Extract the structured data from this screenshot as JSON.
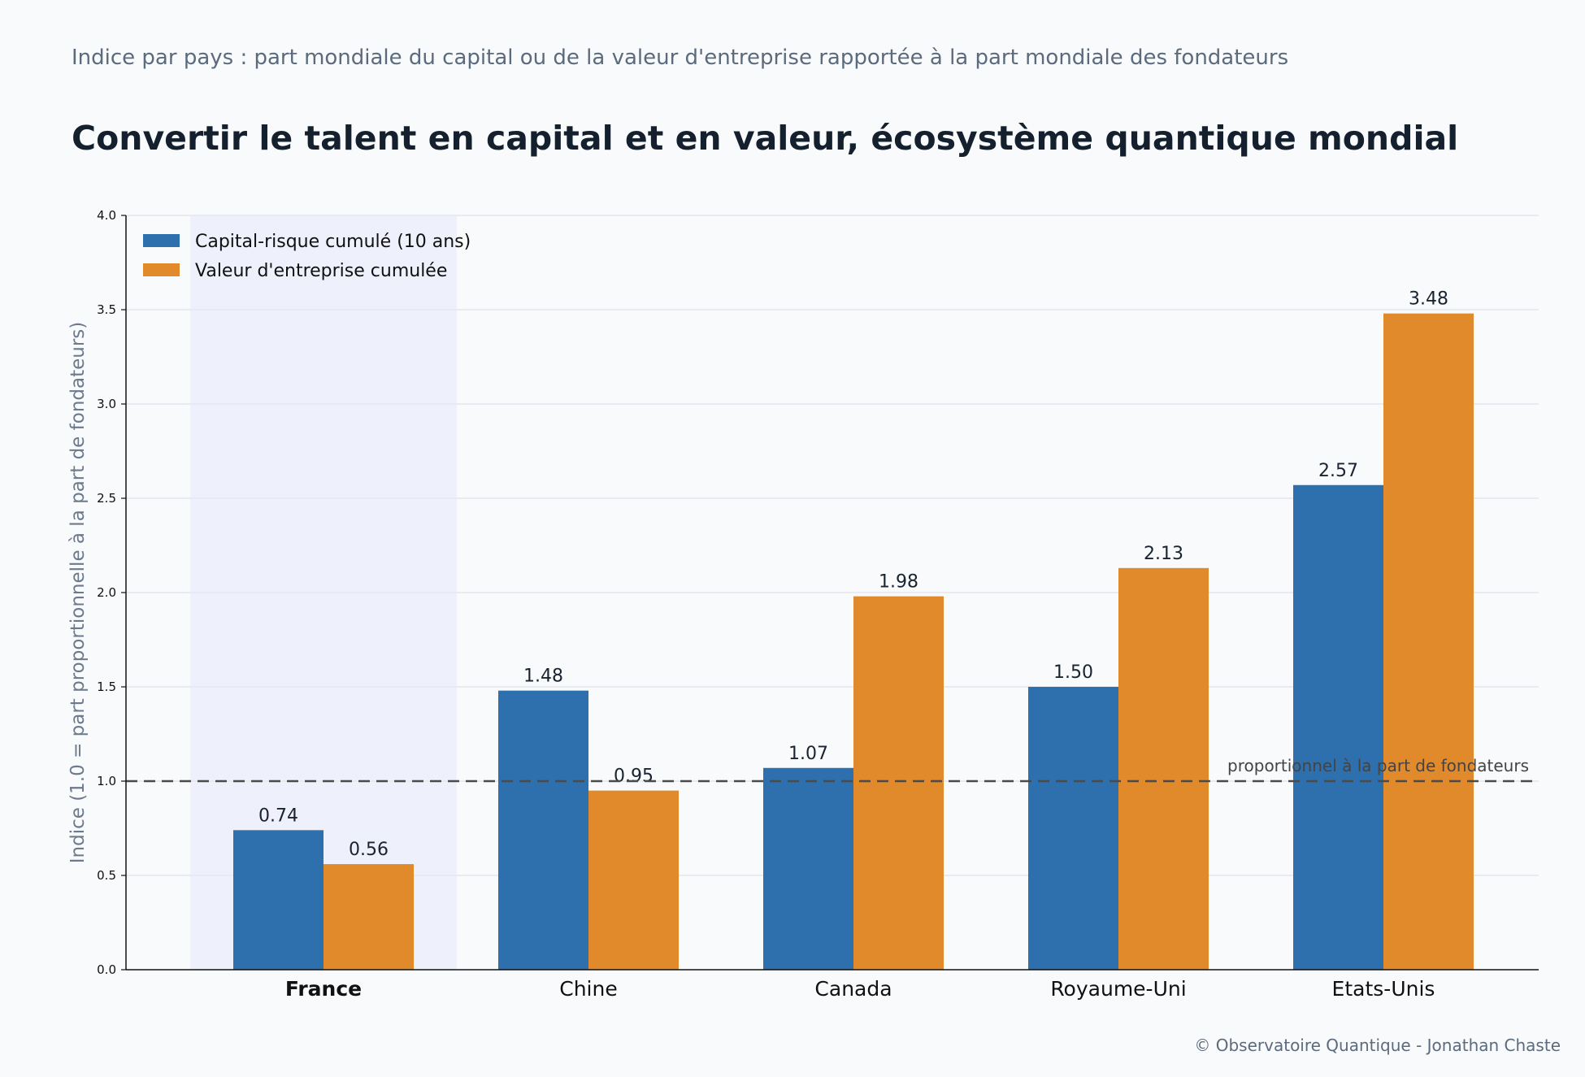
{
  "header": {
    "subtitle": "Indice par pays : part mondiale du capital ou de la valeur d'entreprise rapportée à la part mondiale des fondateurs",
    "title": "Convertir le talent en capital et en valeur, écosystème quantique mondial"
  },
  "footer": {
    "credit": "© Observatoire Quantique - Jonathan Chaste"
  },
  "chart_data": {
    "type": "bar",
    "categories": [
      "France",
      "Chine",
      "Canada",
      "Royaume-Uni",
      "Etats-Unis"
    ],
    "highlight_category": "France",
    "series": [
      {
        "name": "Capital-risque cumulé (10 ans)",
        "values": [
          0.74,
          1.48,
          1.07,
          1.5,
          2.57
        ],
        "color": "#2e6fad"
      },
      {
        "name": "Valeur d'entreprise cumulée",
        "values": [
          0.56,
          0.95,
          1.98,
          2.13,
          3.48
        ],
        "color": "#e08a2c"
      }
    ],
    "value_labels": [
      [
        "0.74",
        "1.48",
        "1.07",
        "1.50",
        "2.57"
      ],
      [
        "0.56",
        "0.95",
        "1.98",
        "2.13",
        "3.48"
      ]
    ],
    "ylabel": "Indice (1.0 = part proportionnelle à la part de fondateurs)",
    "xlabel": "",
    "ylim": [
      0,
      4.0
    ],
    "yticks": [
      "0.0",
      "0.5",
      "1.0",
      "1.5",
      "2.0",
      "2.5",
      "3.0",
      "3.5",
      "4.0"
    ],
    "reference_line": {
      "value": 1.0,
      "label": "proportionnel à la part de fondateurs",
      "style": "dashed"
    },
    "grid": "horizontal",
    "legend_position": "top-left",
    "colors": {
      "highlight_band": "#eef0fb",
      "highlight_text": "#4b3aa0"
    }
  }
}
